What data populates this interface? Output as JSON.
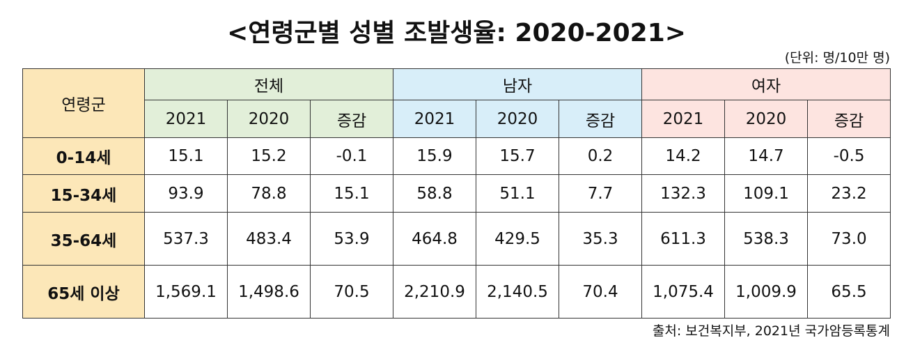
{
  "title": "<연령군별 성별 조발생율: 2020-2021>",
  "unit": "(단위: 명/10만 명)",
  "table": {
    "corner": "연령군",
    "groups": [
      "전체",
      "남자",
      "여자"
    ],
    "subheaders": [
      "2021",
      "2020",
      "증감",
      "2021",
      "2020",
      "증감",
      "2021",
      "2020",
      "증감"
    ],
    "rows": [
      {
        "label": "0-14세",
        "cells": [
          "15.1",
          "15.2",
          "-0.1",
          "15.9",
          "15.7",
          "0.2",
          "14.2",
          "14.7",
          "-0.5"
        ]
      },
      {
        "label": "15-34세",
        "cells": [
          "93.9",
          "78.8",
          "15.1",
          "58.8",
          "51.1",
          "7.7",
          "132.3",
          "109.1",
          "23.2"
        ]
      },
      {
        "label": "35-64세",
        "cells": [
          "537.3",
          "483.4",
          "53.9",
          "464.8",
          "429.5",
          "35.3",
          "611.3",
          "538.3",
          "73.0"
        ]
      },
      {
        "label": "65세 이상",
        "cells": [
          "1,569.1",
          "1,498.6",
          "70.5",
          "2,210.9",
          "2,140.5",
          "70.4",
          "1,075.4",
          "1,009.9",
          "65.5"
        ]
      }
    ]
  },
  "source": "출처: 보건복지부, 2021년 국가암등록통계"
}
